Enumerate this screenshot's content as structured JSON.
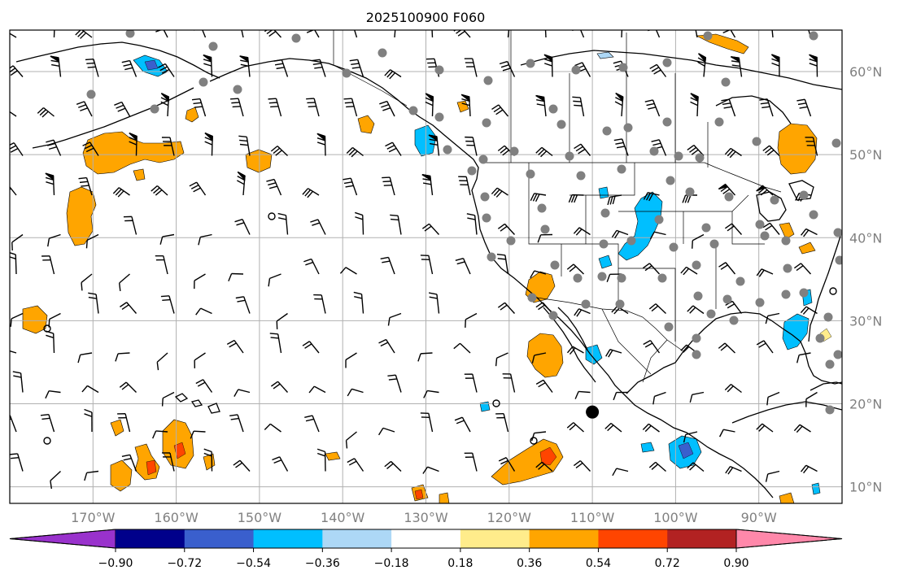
{
  "title": "2025100900 F060",
  "map": {
    "background": "#ffffff",
    "frame_color": "#000000",
    "gridline_color": "#b0b0b0",
    "coastline_color": "#000000",
    "barb_color": "#000000",
    "station_dot_color": "#808080",
    "lon_range": [
      -180,
      -80
    ],
    "lat_range": [
      8,
      65
    ],
    "lon_ticks": [
      {
        "value": -170,
        "label": "170°W"
      },
      {
        "value": -160,
        "label": "160°W"
      },
      {
        "value": -150,
        "label": "150°W"
      },
      {
        "value": -140,
        "label": "140°W"
      },
      {
        "value": -130,
        "label": "130°W"
      },
      {
        "value": -120,
        "label": "120°W"
      },
      {
        "value": -110,
        "label": "110°W"
      },
      {
        "value": -100,
        "label": "100°W"
      },
      {
        "value": -90,
        "label": "90°W"
      }
    ],
    "lat_ticks": [
      {
        "value": 60,
        "label": "60°N"
      },
      {
        "value": 50,
        "label": "50°N"
      },
      {
        "value": 40,
        "label": "40°N"
      },
      {
        "value": 30,
        "label": "30°N"
      },
      {
        "value": 20,
        "label": "20°N"
      },
      {
        "value": 10,
        "label": "10°N"
      }
    ],
    "marker": {
      "lon": -110,
      "lat": 19,
      "color": "#000000"
    }
  },
  "colorbar": {
    "colors": [
      "#9932cc",
      "#00008b",
      "#3a5fcd",
      "#00bfff",
      "#add8f6",
      "#ffffff",
      "#ffec8b",
      "#ffa500",
      "#ff4500",
      "#b22222",
      "#ff88aa"
    ],
    "ticks": [
      "−0.90",
      "−0.72",
      "−0.54",
      "−0.36",
      "−0.18",
      "0.18",
      "0.36",
      "0.54",
      "0.72",
      "0.90"
    ]
  }
}
